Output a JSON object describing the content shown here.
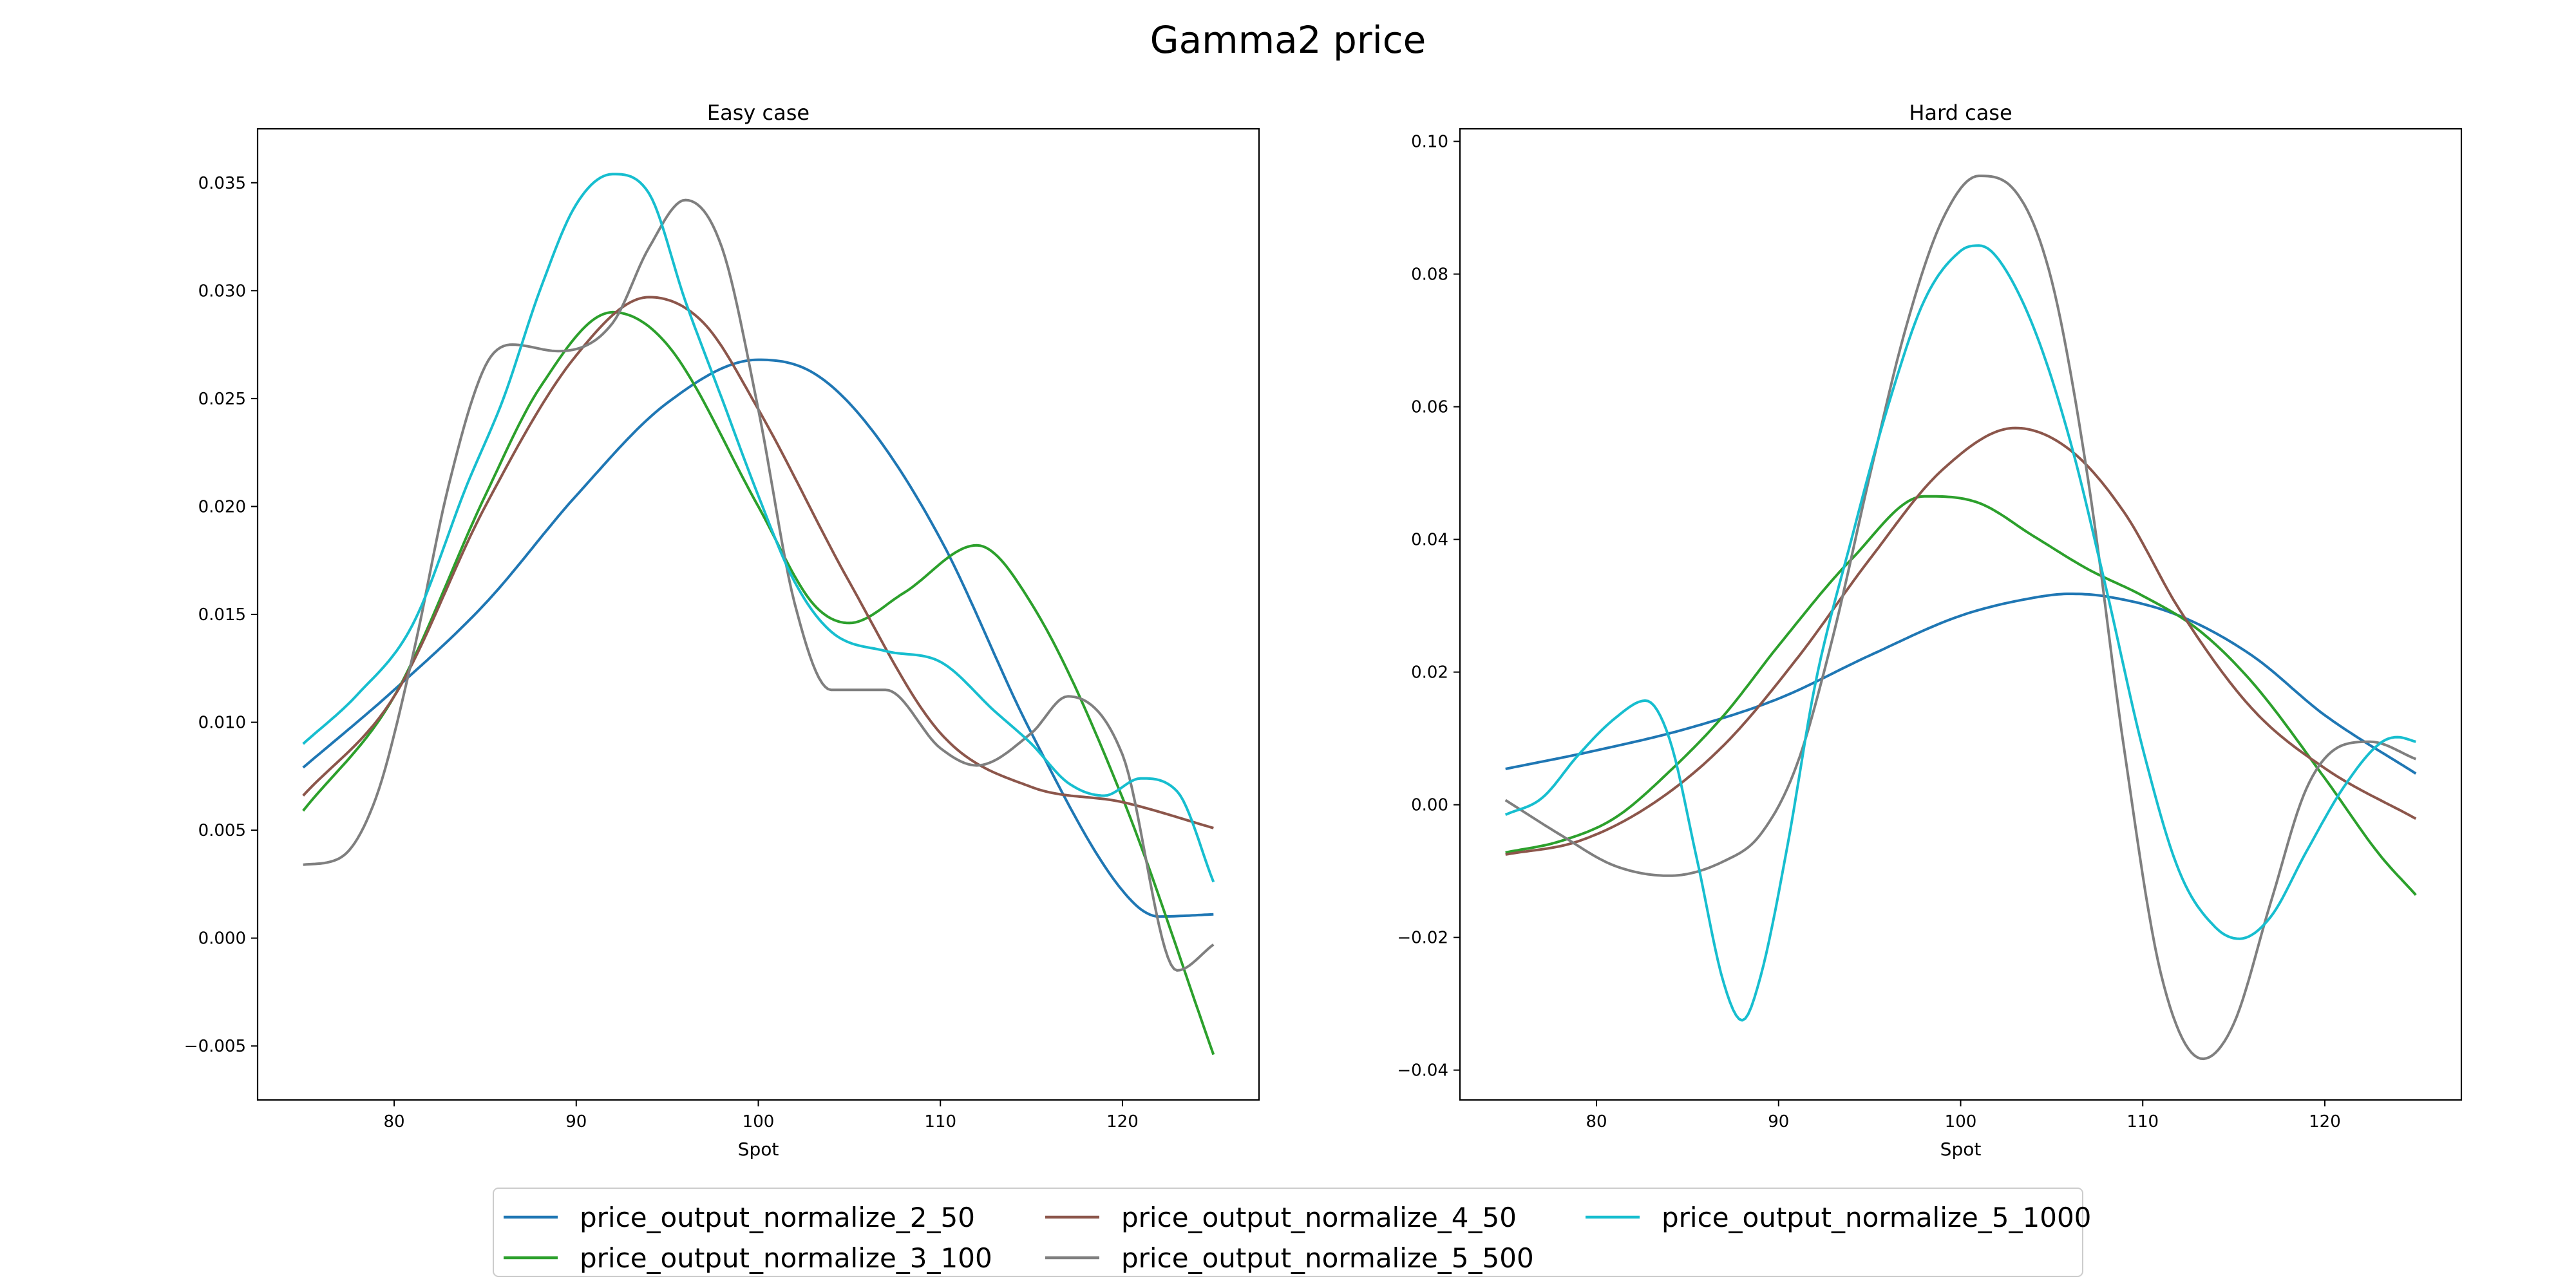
{
  "chart_data": {
    "title": "Gamma2 price",
    "legend": {
      "placement": "bottom-center",
      "entries": [
        {
          "name": "price_output_normalize_2_50",
          "color": "#1f77b4"
        },
        {
          "name": "price_output_normalize_3_100",
          "color": "#2ca02c"
        },
        {
          "name": "price_output_normalize_4_50",
          "color": "#8c564b"
        },
        {
          "name": "price_output_normalize_5_500",
          "color": "#7f7f7f"
        },
        {
          "name": "price_output_normalize_5_1000",
          "color": "#17becf"
        }
      ]
    },
    "panels": [
      {
        "type": "line",
        "title": "Easy case",
        "xlabel": "Spot",
        "ylabel": "",
        "xlim": [
          72.5,
          127.5
        ],
        "ylim": [
          -0.0075,
          0.0375
        ],
        "xticks": [
          80,
          90,
          100,
          110,
          120
        ],
        "xtick_labels": [
          "80",
          "90",
          "100",
          "110",
          "120"
        ],
        "yticks": [
          -0.005,
          0.0,
          0.005,
          0.01,
          0.015,
          0.02,
          0.025,
          0.03,
          0.035
        ],
        "ytick_labels": [
          "−0.005",
          "0.000",
          "0.005",
          "0.010",
          "0.015",
          "0.020",
          "0.025",
          "0.030",
          "0.035"
        ],
        "grid": false,
        "series": [
          {
            "name": "price_output_normalize_2_50",
            "color": "#1f77b4",
            "x": [
              75,
              80,
              85,
              90,
              95,
              100,
              103,
              106,
              110,
              115,
              120,
              122,
              125
            ],
            "y": [
              0.0079,
              0.0115,
              0.0155,
              0.0205,
              0.0248,
              0.0268,
              0.0262,
              0.0238,
              0.0185,
              0.0095,
              0.0022,
              0.001,
              0.0011
            ]
          },
          {
            "name": "price_output_normalize_3_100",
            "color": "#2ca02c",
            "x": [
              75,
              80,
              85,
              88,
              92,
              95,
              100,
              103,
              105,
              108,
              112,
              115,
              120,
              125
            ],
            "y": [
              0.0059,
              0.0112,
              0.0205,
              0.0255,
              0.029,
              0.0275,
              0.02,
              0.0155,
              0.0146,
              0.016,
              0.0182,
              0.0155,
              0.0065,
              -0.0054
            ]
          },
          {
            "name": "price_output_normalize_4_50",
            "color": "#8c564b",
            "x": [
              75,
              80,
              85,
              90,
              94,
              97,
              100,
              105,
              110,
              115,
              120,
              125
            ],
            "y": [
              0.0066,
              0.0112,
              0.02,
              0.027,
              0.0297,
              0.0285,
              0.0245,
              0.0165,
              0.0095,
              0.007,
              0.0063,
              0.0051
            ]
          },
          {
            "name": "price_output_normalize_5_500",
            "color": "#7f7f7f",
            "x": [
              75,
              77,
              79,
              81,
              83,
              85,
              86.5,
              89,
              92,
              94,
              96,
              98,
              100,
              102,
              104,
              107,
              110,
              112,
              115,
              117,
              120,
              123,
              125
            ],
            "y": [
              0.0034,
              0.0037,
              0.0065,
              0.013,
              0.021,
              0.0265,
              0.0275,
              0.0272,
              0.0285,
              0.032,
              0.0342,
              0.032,
              0.0245,
              0.0155,
              0.0115,
              0.0115,
              0.0088,
              0.008,
              0.0095,
              0.0112,
              0.0085,
              -0.0015,
              -0.0003
            ]
          },
          {
            "name": "price_output_normalize_5_1000",
            "color": "#17becf",
            "x": [
              75,
              78,
              81,
              84,
              86,
              88,
              90,
              92,
              94,
              96,
              98,
              100,
              102,
              104,
              107,
              110,
              113,
              115,
              117,
              119,
              121,
              123,
              125
            ],
            "y": [
              0.009,
              0.0113,
              0.0145,
              0.021,
              0.025,
              0.03,
              0.034,
              0.0354,
              0.0345,
              0.0295,
              0.025,
              0.0205,
              0.0165,
              0.0142,
              0.0133,
              0.0128,
              0.0105,
              0.009,
              0.0072,
              0.0066,
              0.0074,
              0.0068,
              0.0026
            ]
          }
        ]
      },
      {
        "type": "line",
        "title": "Hard case",
        "xlabel": "Spot",
        "ylabel": "",
        "xlim": [
          72.5,
          127.5
        ],
        "ylim": [
          -0.0445,
          0.1019
        ],
        "xticks": [
          80,
          90,
          100,
          110,
          120
        ],
        "xtick_labels": [
          "80",
          "90",
          "100",
          "110",
          "120"
        ],
        "yticks": [
          -0.04,
          -0.02,
          0.0,
          0.02,
          0.04,
          0.06,
          0.08,
          0.1
        ],
        "ytick_labels": [
          "−0.04",
          "−0.02",
          "0.00",
          "0.02",
          "0.04",
          "0.06",
          "0.08",
          "0.10"
        ],
        "grid": false,
        "series": [
          {
            "name": "price_output_normalize_2_50",
            "color": "#1f77b4",
            "x": [
              75,
              80,
              85,
              90,
              95,
              100,
              104,
              106,
              108,
              112,
              116,
              120,
              125
            ],
            "y": [
              0.0054,
              0.0082,
              0.0115,
              0.016,
              0.0225,
              0.0285,
              0.0312,
              0.0318,
              0.0314,
              0.0285,
              0.0225,
              0.0135,
              0.0047
            ]
          },
          {
            "name": "price_output_normalize_3_100",
            "color": "#2ca02c",
            "x": [
              75,
              78,
              81,
              84,
              87,
              90,
              94,
              98,
              101,
              104,
              107,
              110,
              113,
              116,
              120,
              123,
              125
            ],
            "y": [
              -0.0072,
              -0.0055,
              -0.002,
              0.005,
              0.0135,
              0.024,
              0.037,
              0.0465,
              0.0455,
              0.0405,
              0.0355,
              0.0315,
              0.0265,
              0.0185,
              0.004,
              -0.0075,
              -0.0136
            ]
          },
          {
            "name": "price_output_normalize_4_50",
            "color": "#8c564b",
            "x": [
              75,
              79,
              83,
              87,
              91,
              95,
              99,
              103,
              106,
              109,
              112,
              116,
              120,
              125
            ],
            "y": [
              -0.0075,
              -0.0055,
              0.0,
              0.009,
              0.022,
              0.037,
              0.0505,
              0.0568,
              0.0535,
              0.044,
              0.0295,
              0.0145,
              0.0055,
              -0.0021
            ]
          },
          {
            "name": "price_output_normalize_5_500",
            "color": "#7f7f7f",
            "x": [
              75,
              78,
              81,
              84,
              87,
              89,
              91,
              93,
              95,
              97,
              99,
              101,
              103,
              105,
              107,
              109,
              111,
              113.3,
              115,
              117,
              119,
              121,
              122.5,
              125
            ],
            "y": [
              0.0007,
              -0.0045,
              -0.0092,
              -0.0107,
              -0.0085,
              -0.0045,
              0.006,
              0.0255,
              0.0495,
              0.072,
              0.0882,
              0.0948,
              0.0925,
              0.079,
              0.049,
              0.008,
              -0.0255,
              -0.0383,
              -0.033,
              -0.015,
              0.0025,
              0.009,
              0.0095,
              0.0069
            ]
          },
          {
            "name": "price_output_normalize_5_1000",
            "color": "#17becf",
            "x": [
              75,
              77,
              79,
              81,
              82.7,
              84,
              85.5,
              87,
              88,
              89,
              90.5,
              92,
              94,
              96,
              98,
              100,
              101,
              102,
              104,
              106,
              108,
              110,
              112,
              114,
              115.3,
              117,
              119,
              121,
              123,
              124,
              125
            ],
            "y": [
              -0.0015,
              0.001,
              0.0075,
              0.013,
              0.0157,
              0.01,
              -0.008,
              -0.027,
              -0.0325,
              -0.026,
              -0.006,
              0.018,
              0.04,
              0.06,
              0.076,
              0.0835,
              0.0843,
              0.0825,
              0.072,
              0.055,
              0.0325,
              0.0085,
              -0.01,
              -0.0185,
              -0.0202,
              -0.017,
              -0.007,
              0.0025,
              0.0092,
              0.0102,
              0.0095
            ]
          }
        ]
      }
    ]
  }
}
